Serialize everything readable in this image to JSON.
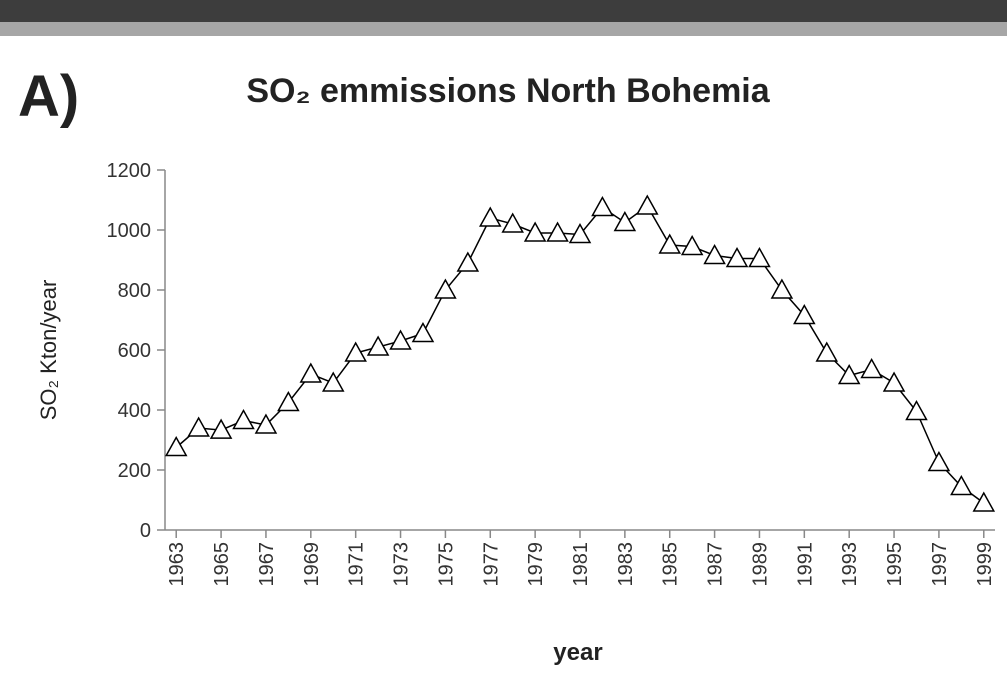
{
  "chart_data": {
    "type": "line",
    "label": "A)",
    "title": "SO₂ emmissions North Bohemia",
    "y_label": "SO₂ Kton/year",
    "x_label": "year",
    "x": [
      1963,
      1964,
      1965,
      1966,
      1967,
      1968,
      1969,
      1970,
      1971,
      1972,
      1973,
      1974,
      1975,
      1976,
      1977,
      1978,
      1979,
      1980,
      1981,
      1982,
      1983,
      1984,
      1985,
      1986,
      1987,
      1988,
      1989,
      1990,
      1991,
      1992,
      1993,
      1994,
      1995,
      1996,
      1997,
      1998,
      1999
    ],
    "series": [
      {
        "color": "#000000",
        "values": [
          275,
          340,
          333,
          365,
          350,
          425,
          520,
          490,
          590,
          610,
          630,
          655,
          800,
          890,
          1040,
          1020,
          990,
          990,
          985,
          1075,
          1025,
          1080,
          950,
          945,
          915,
          905,
          905,
          800,
          715,
          590,
          515,
          535,
          490,
          395,
          225,
          145,
          90
        ]
      }
    ],
    "xlim": [
      1962.5,
      1999.5
    ],
    "xticks": [
      1963,
      1965,
      1967,
      1969,
      1971,
      1973,
      1975,
      1977,
      1979,
      1981,
      1983,
      1985,
      1987,
      1989,
      1991,
      1993,
      1995,
      1997,
      1999
    ],
    "ylim": [
      0,
      1200
    ],
    "yticks": [
      0,
      200,
      400,
      600,
      800,
      1000,
      1200
    ],
    "grid": false
  }
}
